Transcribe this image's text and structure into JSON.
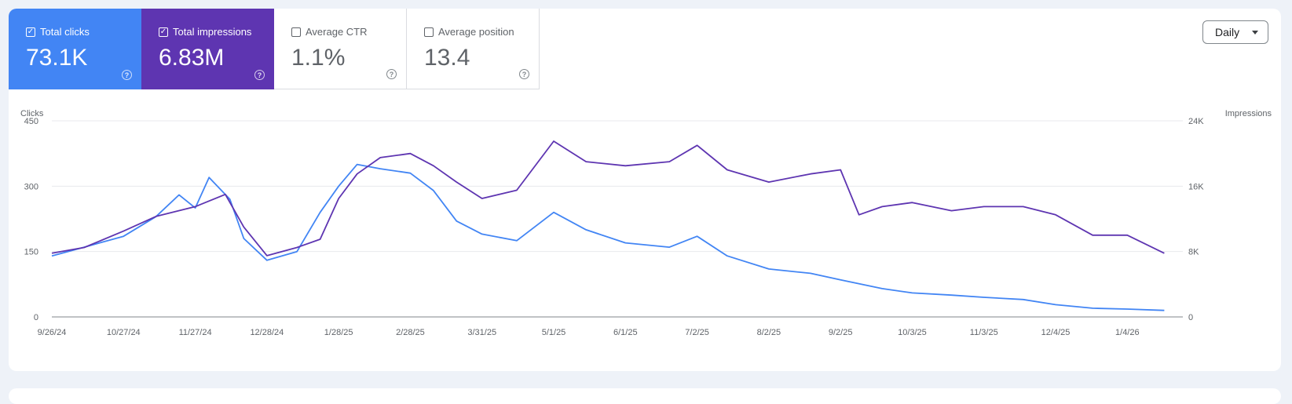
{
  "metrics": [
    {
      "label": "Total clicks",
      "value": "73.1K",
      "selected": true,
      "color": "#4285f4"
    },
    {
      "label": "Total impressions",
      "value": "6.83M",
      "selected": true,
      "color": "#5e35b1"
    },
    {
      "label": "Average CTR",
      "value": "1.1%",
      "selected": false
    },
    {
      "label": "Average position",
      "value": "13.4",
      "selected": false
    }
  ],
  "help_glyph": "?",
  "check_glyph": "✓",
  "granularity": {
    "label": "Daily",
    "icon": "dropdown-arrow-icon"
  },
  "chart_data": {
    "type": "line",
    "left_axis": {
      "title": "Clicks",
      "ticks": [
        "450",
        "300",
        "150",
        "0"
      ],
      "range": [
        0,
        450
      ]
    },
    "right_axis": {
      "title": "Impressions",
      "ticks": [
        "24K",
        "16K",
        "8K",
        "0"
      ],
      "range": [
        0,
        24000
      ]
    },
    "x_tick_labels": [
      "9/26/24",
      "10/27/24",
      "11/27/24",
      "12/28/24",
      "1/28/25",
      "2/28/25",
      "3/31/25",
      "5/1/25",
      "6/1/25",
      "7/2/25",
      "8/2/25",
      "9/2/25",
      "10/3/25",
      "11/3/25",
      "12/4/25",
      "1/4/26"
    ],
    "grid": true,
    "legend": "none",
    "series": [
      {
        "name": "Clicks",
        "axis": "left",
        "color": "#4285f4",
        "points": [
          [
            "9/26/24",
            140
          ],
          [
            "10/10/24",
            160
          ],
          [
            "10/27/24",
            185
          ],
          [
            "11/10/24",
            230
          ],
          [
            "11/20/24",
            280
          ],
          [
            "11/27/24",
            250
          ],
          [
            "12/3/24",
            320
          ],
          [
            "12/12/24",
            270
          ],
          [
            "12/18/24",
            180
          ],
          [
            "12/28/24",
            130
          ],
          [
            "1/10/25",
            150
          ],
          [
            "1/20/25",
            240
          ],
          [
            "1/28/25",
            300
          ],
          [
            "2/5/25",
            350
          ],
          [
            "2/15/25",
            340
          ],
          [
            "2/28/25",
            330
          ],
          [
            "3/10/25",
            290
          ],
          [
            "3/20/25",
            220
          ],
          [
            "3/31/25",
            190
          ],
          [
            "4/15/25",
            175
          ],
          [
            "5/1/25",
            240
          ],
          [
            "5/15/25",
            200
          ],
          [
            "6/1/25",
            170
          ],
          [
            "6/20/25",
            160
          ],
          [
            "7/2/25",
            185
          ],
          [
            "7/15/25",
            140
          ],
          [
            "8/2/25",
            110
          ],
          [
            "8/20/25",
            100
          ],
          [
            "9/2/25",
            85
          ],
          [
            "9/20/25",
            65
          ],
          [
            "10/3/25",
            55
          ],
          [
            "10/20/25",
            50
          ],
          [
            "11/3/25",
            45
          ],
          [
            "11/20/25",
            40
          ],
          [
            "12/4/25",
            28
          ],
          [
            "12/20/25",
            20
          ],
          [
            "1/4/26",
            18
          ],
          [
            "1/20/26",
            15
          ]
        ]
      },
      {
        "name": "Impressions",
        "axis": "right",
        "color": "#5e35b1",
        "points": [
          [
            "9/26/24",
            7800
          ],
          [
            "10/10/24",
            8500
          ],
          [
            "10/27/24",
            10500
          ],
          [
            "11/10/24",
            12300
          ],
          [
            "11/27/24",
            13500
          ],
          [
            "12/10/24",
            15000
          ],
          [
            "12/18/24",
            11000
          ],
          [
            "12/28/24",
            7500
          ],
          [
            "1/10/25",
            8500
          ],
          [
            "1/20/25",
            9500
          ],
          [
            "1/28/25",
            14500
          ],
          [
            "2/5/25",
            17500
          ],
          [
            "2/15/25",
            19500
          ],
          [
            "2/28/25",
            20000
          ],
          [
            "3/10/25",
            18500
          ],
          [
            "3/20/25",
            16500
          ],
          [
            "3/31/25",
            14500
          ],
          [
            "4/15/25",
            15500
          ],
          [
            "5/1/25",
            21500
          ],
          [
            "5/15/25",
            19000
          ],
          [
            "6/1/25",
            18500
          ],
          [
            "6/20/25",
            19000
          ],
          [
            "7/2/25",
            21000
          ],
          [
            "7/15/25",
            18000
          ],
          [
            "8/2/25",
            16500
          ],
          [
            "8/20/25",
            17500
          ],
          [
            "9/2/25",
            18000
          ],
          [
            "9/10/25",
            12500
          ],
          [
            "9/20/25",
            13500
          ],
          [
            "10/3/25",
            14000
          ],
          [
            "10/20/25",
            13000
          ],
          [
            "11/3/25",
            13500
          ],
          [
            "11/20/25",
            13500
          ],
          [
            "12/4/25",
            12500
          ],
          [
            "12/20/25",
            10000
          ],
          [
            "1/4/26",
            10000
          ],
          [
            "1/20/26",
            7800
          ]
        ]
      }
    ]
  }
}
